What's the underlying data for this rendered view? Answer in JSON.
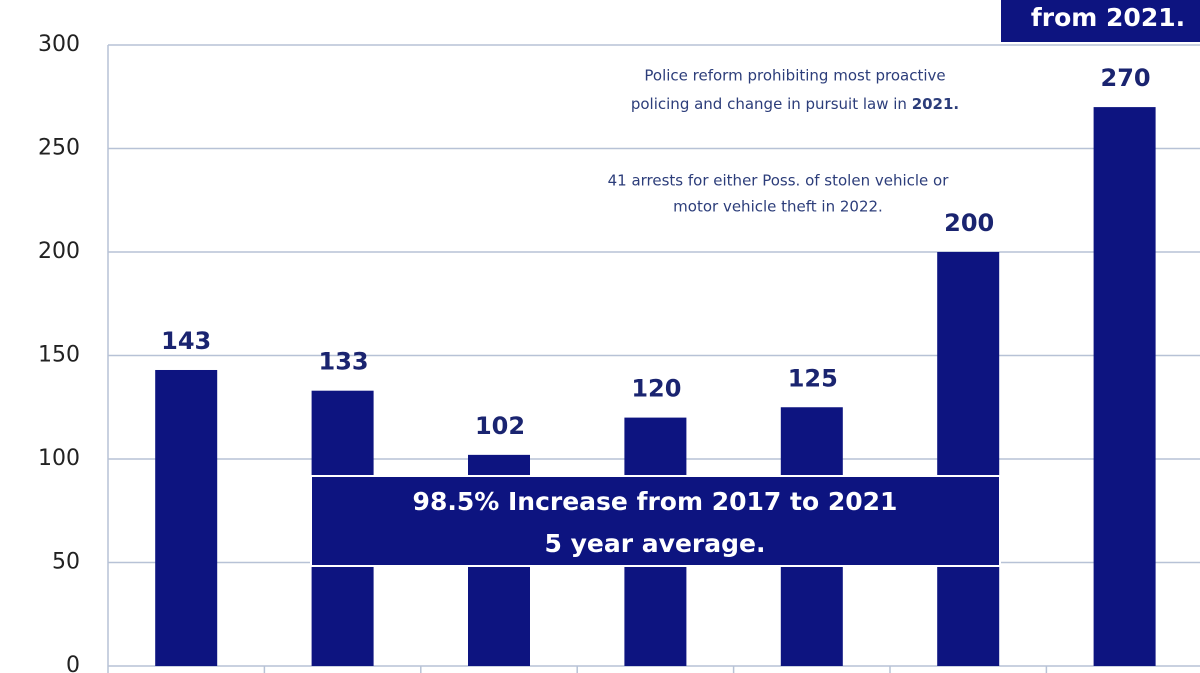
{
  "chart_data": {
    "type": "bar",
    "categories": [
      null,
      null,
      null,
      null,
      null,
      null,
      null
    ],
    "values": [
      143,
      133,
      102,
      120,
      125,
      200,
      270
    ],
    "color": "#0d1480",
    "ylim": [
      0,
      300
    ],
    "yticks": [
      0,
      50,
      100,
      150,
      200,
      250,
      300
    ],
    "grid": true,
    "annotations": {
      "police_reform": [
        "Police reform prohibiting most proactive",
        "policing and change in pursuit law in ",
        "2021."
      ],
      "arrests": [
        "41 arrests for either Poss. of stolen vehicle or",
        "motor vehicle theft in 2022."
      ],
      "increase": [
        "98.5% Increase from 2017 to 2021",
        "5 year average."
      ],
      "top_box": "from 2021."
    }
  }
}
